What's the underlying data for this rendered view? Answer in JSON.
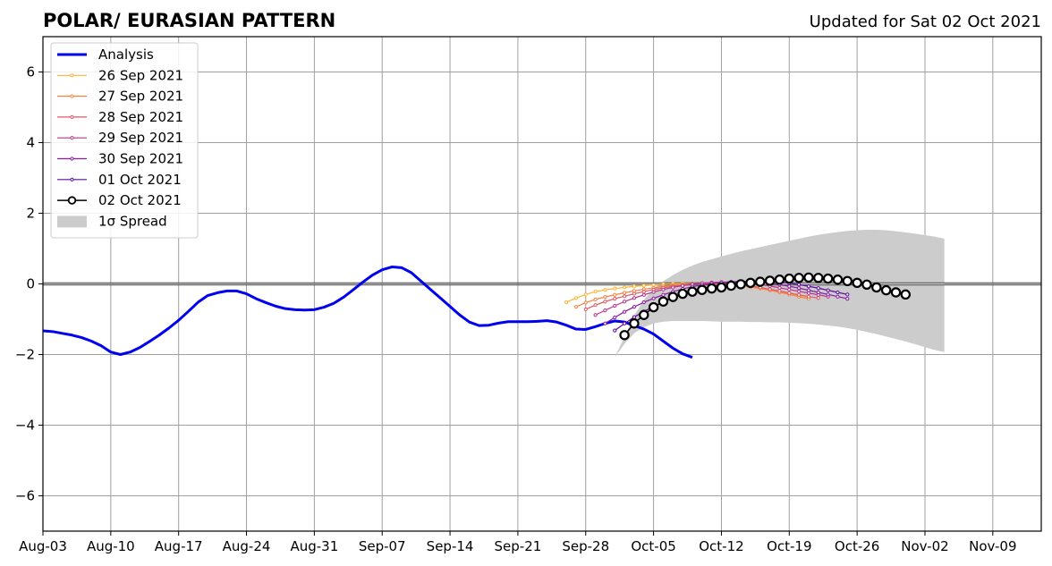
{
  "chart_data": {
    "type": "line",
    "title": "POLAR/ EURASIAN  PATTERN",
    "subtitle": "Updated for Sat 02 Oct 2021",
    "xlabel": "",
    "ylabel": "",
    "ylim": [
      -7,
      7
    ],
    "xlim": [
      "2021-08-03",
      "2021-11-14"
    ],
    "x_ticks": [
      "2021-08-03",
      "2021-08-10",
      "2021-08-17",
      "2021-08-24",
      "2021-08-31",
      "2021-09-07",
      "2021-09-14",
      "2021-09-21",
      "2021-09-28",
      "2021-10-05",
      "2021-10-12",
      "2021-10-19",
      "2021-10-26",
      "2021-11-02",
      "2021-11-09"
    ],
    "x_tick_labels": [
      "Aug-03",
      "Aug-10",
      "Aug-17",
      "Aug-24",
      "Aug-31",
      "Sep-07",
      "Sep-14",
      "Sep-21",
      "Sep-28",
      "Oct-05",
      "Oct-12",
      "Oct-19",
      "Oct-26",
      "Nov-02",
      "Nov-09"
    ],
    "y_ticks": [
      -6,
      -4,
      -2,
      0,
      2,
      4,
      6
    ],
    "y_tick_labels": [
      "−6",
      "−4",
      "−2",
      "0",
      "2",
      "4",
      "6"
    ],
    "grid": true,
    "legend_position": "top-left",
    "legend": {
      "analysis": "Analysis",
      "spread": "1σ Spread"
    },
    "analysis": {
      "name": "Analysis",
      "color": "#0000ee",
      "start": "2021-08-03",
      "values": [
        -1.33,
        -1.35,
        -1.4,
        -1.45,
        -1.52,
        -1.62,
        -1.75,
        -1.93,
        -2.0,
        -1.93,
        -1.8,
        -1.63,
        -1.45,
        -1.25,
        -1.03,
        -0.78,
        -0.52,
        -0.33,
        -0.25,
        -0.2,
        -0.2,
        -0.28,
        -0.42,
        -0.53,
        -0.63,
        -0.7,
        -0.73,
        -0.74,
        -0.73,
        -0.66,
        -0.55,
        -0.38,
        -0.17,
        0.05,
        0.25,
        0.4,
        0.48,
        0.46,
        0.32,
        0.08,
        -0.16,
        -0.4,
        -0.64,
        -0.88,
        -1.08,
        -1.18,
        -1.17,
        -1.11,
        -1.07,
        -1.07,
        -1.07,
        -1.06,
        -1.04,
        -1.08,
        -1.17,
        -1.28,
        -1.29,
        -1.21,
        -1.12,
        -1.05,
        -1.08,
        -1.18,
        -1.28,
        -1.42,
        -1.62,
        -1.82,
        -1.98,
        -2.08
      ]
    },
    "forecasts": [
      {
        "name": "26 Sep 2021",
        "color": "#fdb531",
        "start": "2021-09-26",
        "values": [
          -0.52,
          -0.4,
          -0.3,
          -0.22,
          -0.17,
          -0.13,
          -0.1,
          -0.07,
          -0.05,
          -0.03,
          -0.01,
          0.0,
          0.01,
          0.01,
          0.01,
          0.0,
          -0.01,
          -0.03,
          -0.06,
          -0.09,
          -0.13,
          -0.17,
          -0.22,
          -0.28,
          -0.34,
          -0.4
        ]
      },
      {
        "name": "27 Sep 2021",
        "color": "#f5833f",
        "start": "2021-09-27",
        "values": [
          -0.65,
          -0.53,
          -0.44,
          -0.37,
          -0.31,
          -0.25,
          -0.2,
          -0.15,
          -0.11,
          -0.07,
          -0.04,
          -0.02,
          0.0,
          0.01,
          0.01,
          0.0,
          -0.02,
          -0.05,
          -0.09,
          -0.13,
          -0.18,
          -0.24,
          -0.3,
          -0.36,
          -0.42
        ]
      },
      {
        "name": "28 Sep 2021",
        "color": "#df5766",
        "start": "2021-09-28",
        "values": [
          -0.72,
          -0.6,
          -0.5,
          -0.42,
          -0.35,
          -0.28,
          -0.22,
          -0.16,
          -0.11,
          -0.07,
          -0.03,
          0.0,
          0.02,
          0.02,
          0.02,
          0.0,
          -0.02,
          -0.06,
          -0.1,
          -0.15,
          -0.2,
          -0.26,
          -0.31,
          -0.36,
          -0.4
        ]
      },
      {
        "name": "29 Sep 2021",
        "color": "#b9348c",
        "start": "2021-09-29",
        "values": [
          -0.88,
          -0.75,
          -0.62,
          -0.5,
          -0.4,
          -0.31,
          -0.23,
          -0.16,
          -0.1,
          -0.05,
          -0.01,
          0.02,
          0.04,
          0.05,
          0.05,
          0.04,
          0.02,
          -0.02,
          -0.06,
          -0.11,
          -0.16,
          -0.21,
          -0.26,
          -0.31,
          -0.36
        ]
      },
      {
        "name": "30 Sep 2021",
        "color": "#8b1aa3",
        "start": "2021-09-30",
        "values": [
          -1.12,
          -0.95,
          -0.79,
          -0.65,
          -0.52,
          -0.41,
          -0.31,
          -0.22,
          -0.14,
          -0.08,
          -0.03,
          0.01,
          0.04,
          0.06,
          0.07,
          0.07,
          0.05,
          0.02,
          -0.02,
          -0.07,
          -0.12,
          -0.18,
          -0.24,
          -0.3,
          -0.36,
          -0.42
        ]
      },
      {
        "name": "01 Oct 2021",
        "color": "#5a0ba1",
        "start": "2021-10-01",
        "values": [
          -1.32,
          -1.12,
          -0.94,
          -0.78,
          -0.64,
          -0.51,
          -0.4,
          -0.3,
          -0.21,
          -0.13,
          -0.07,
          -0.02,
          0.02,
          0.05,
          0.07,
          0.08,
          0.07,
          0.05,
          0.02,
          -0.02,
          -0.07,
          -0.12,
          -0.18,
          -0.24,
          -0.3
        ]
      },
      {
        "name": "02 Oct 2021",
        "color": "#000000",
        "start": "2021-10-02",
        "values": [
          -1.45,
          -1.12,
          -0.88,
          -0.66,
          -0.5,
          -0.37,
          -0.28,
          -0.22,
          -0.17,
          -0.13,
          -0.1,
          -0.05,
          -0.01,
          0.03,
          0.06,
          0.09,
          0.12,
          0.15,
          0.17,
          0.18,
          0.17,
          0.15,
          0.12,
          0.08,
          0.03,
          -0.02,
          -0.1,
          -0.18,
          -0.24,
          -0.3
        ]
      }
    ],
    "spread": {
      "name": "1σ Spread",
      "color": "#cccccc",
      "start": "2021-10-01",
      "upper": [
        -2.08,
        -1.5,
        -0.9,
        -0.45,
        -0.15,
        0.08,
        0.25,
        0.4,
        0.52,
        0.62,
        0.7,
        0.78,
        0.85,
        0.92,
        0.98,
        1.04,
        1.1,
        1.16,
        1.22,
        1.28,
        1.34,
        1.39,
        1.43,
        1.47,
        1.5,
        1.52,
        1.53,
        1.53,
        1.52,
        1.49,
        1.46,
        1.42,
        1.38,
        1.34,
        1.28
      ],
      "lower": [
        -2.08,
        -1.7,
        -1.4,
        -1.22,
        -1.12,
        -1.07,
        -1.05,
        -1.05,
        -1.05,
        -1.05,
        -1.06,
        -1.07,
        -1.07,
        -1.07,
        -1.08,
        -1.08,
        -1.09,
        -1.09,
        -1.1,
        -1.11,
        -1.13,
        -1.15,
        -1.18,
        -1.21,
        -1.25,
        -1.3,
        -1.36,
        -1.42,
        -1.49,
        -1.56,
        -1.63,
        -1.71,
        -1.79,
        -1.87,
        -1.93
      ]
    }
  }
}
